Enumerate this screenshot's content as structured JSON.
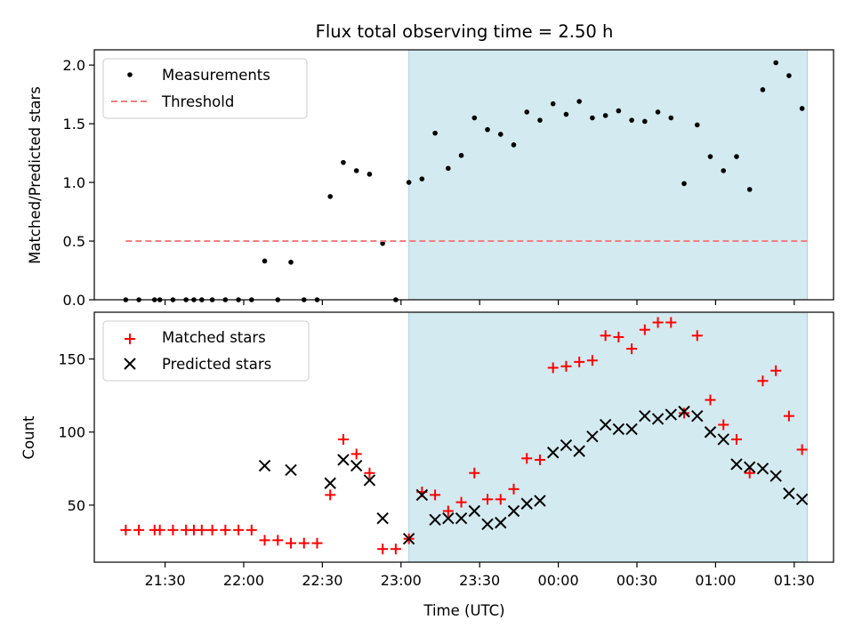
{
  "chart_data": {
    "type": "scatter",
    "title": "Flux total observing time = 2.50 h",
    "xlabel": "Time (UTC)",
    "x_range": [
      "21:03",
      "01:45"
    ],
    "x_tick_labels": [
      "21:30",
      "22:00",
      "22:30",
      "23:00",
      "23:30",
      "00:00",
      "00:30",
      "01:00",
      "01:30"
    ],
    "highlight_span": {
      "start": "23:03",
      "end": "01:35",
      "color": "#d3eaf0"
    },
    "panels": [
      {
        "ylabel": "Matched/Predicted stars",
        "ylim": [
          0,
          2.13
        ],
        "y_tick_labels": [
          "0.0",
          "0.5",
          "1.0",
          "1.5",
          "2.0"
        ],
        "legend_position": "top-left",
        "series": [
          {
            "name": "Measurements",
            "marker": "dot",
            "color": "#000000",
            "points": [
              [
                "21:15",
                0
              ],
              [
                "21:20",
                0
              ],
              [
                "21:26",
                0
              ],
              [
                "21:28",
                0
              ],
              [
                "21:33",
                0
              ],
              [
                "21:38",
                0
              ],
              [
                "21:41",
                0
              ],
              [
                "21:44",
                0
              ],
              [
                "21:48",
                0
              ],
              [
                "21:53",
                0
              ],
              [
                "21:58",
                0
              ],
              [
                "22:03",
                0
              ],
              [
                "22:08",
                0.33
              ],
              [
                "22:13",
                0
              ],
              [
                "22:18",
                0.32
              ],
              [
                "22:23",
                0
              ],
              [
                "22:28",
                0
              ],
              [
                "22:33",
                0.88
              ],
              [
                "22:38",
                1.17
              ],
              [
                "22:43",
                1.1
              ],
              [
                "22:48",
                1.07
              ],
              [
                "22:53",
                0.48
              ],
              [
                "22:58",
                0
              ],
              [
                "23:03",
                1.0
              ],
              [
                "23:08",
                1.03
              ],
              [
                "23:13",
                1.42
              ],
              [
                "23:18",
                1.12
              ],
              [
                "23:23",
                1.23
              ],
              [
                "23:28",
                1.55
              ],
              [
                "23:33",
                1.45
              ],
              [
                "23:38",
                1.41
              ],
              [
                "23:43",
                1.32
              ],
              [
                "23:48",
                1.6
              ],
              [
                "23:53",
                1.53
              ],
              [
                "23:58",
                1.67
              ],
              [
                "00:03",
                1.58
              ],
              [
                "00:08",
                1.69
              ],
              [
                "00:13",
                1.55
              ],
              [
                "00:18",
                1.57
              ],
              [
                "00:23",
                1.61
              ],
              [
                "00:28",
                1.53
              ],
              [
                "00:33",
                1.52
              ],
              [
                "00:38",
                1.6
              ],
              [
                "00:43",
                1.55
              ],
              [
                "00:48",
                0.99
              ],
              [
                "00:53",
                1.49
              ],
              [
                "00:58",
                1.22
              ],
              [
                "01:03",
                1.1
              ],
              [
                "01:08",
                1.22
              ],
              [
                "01:13",
                0.94
              ],
              [
                "01:18",
                1.79
              ],
              [
                "01:23",
                2.02
              ],
              [
                "01:28",
                1.91
              ],
              [
                "01:33",
                1.63
              ]
            ]
          },
          {
            "name": "Threshold",
            "marker": "dashed-line",
            "color": "#f08080",
            "y": 0.5,
            "x": [
              "21:15",
              "01:35"
            ]
          }
        ]
      },
      {
        "ylabel": "Count",
        "ylim": [
          11,
          182
        ],
        "y_tick_labels": [
          "50",
          "100",
          "150"
        ],
        "legend_position": "top-left",
        "series": [
          {
            "name": "Matched stars",
            "marker": "plus",
            "color": "#ff0000",
            "points": [
              [
                "21:15",
                33
              ],
              [
                "21:20",
                33
              ],
              [
                "21:26",
                33
              ],
              [
                "21:28",
                33
              ],
              [
                "21:33",
                33
              ],
              [
                "21:38",
                33
              ],
              [
                "21:41",
                33
              ],
              [
                "21:44",
                33
              ],
              [
                "21:48",
                33
              ],
              [
                "21:53",
                33
              ],
              [
                "21:58",
                33
              ],
              [
                "22:03",
                33
              ],
              [
                "22:08",
                26
              ],
              [
                "22:13",
                26
              ],
              [
                "22:18",
                24
              ],
              [
                "22:23",
                24
              ],
              [
                "22:28",
                24
              ],
              [
                "22:33",
                57
              ],
              [
                "22:38",
                95
              ],
              [
                "22:43",
                85
              ],
              [
                "22:48",
                72
              ],
              [
                "22:53",
                20
              ],
              [
                "22:58",
                20
              ],
              [
                "23:03",
                27
              ],
              [
                "23:08",
                59
              ],
              [
                "23:13",
                57
              ],
              [
                "23:18",
                46
              ],
              [
                "23:23",
                52
              ],
              [
                "23:28",
                72
              ],
              [
                "23:33",
                54
              ],
              [
                "23:38",
                54
              ],
              [
                "23:43",
                61
              ],
              [
                "23:48",
                82
              ],
              [
                "23:53",
                81
              ],
              [
                "23:58",
                144
              ],
              [
                "00:03",
                145
              ],
              [
                "00:08",
                148
              ],
              [
                "00:13",
                149
              ],
              [
                "00:18",
                166
              ],
              [
                "00:23",
                165
              ],
              [
                "00:28",
                157
              ],
              [
                "00:33",
                170
              ],
              [
                "00:38",
                175
              ],
              [
                "00:43",
                175
              ],
              [
                "00:48",
                113
              ],
              [
                "00:53",
                166
              ],
              [
                "00:58",
                122
              ],
              [
                "01:03",
                105
              ],
              [
                "01:08",
                95
              ],
              [
                "01:13",
                72
              ],
              [
                "01:18",
                135
              ],
              [
                "01:23",
                142
              ],
              [
                "01:28",
                111
              ],
              [
                "01:33",
                88
              ]
            ]
          },
          {
            "name": "Predicted stars",
            "marker": "x",
            "color": "#000000",
            "points": [
              [
                "22:08",
                77
              ],
              [
                "22:18",
                74
              ],
              [
                "22:33",
                65
              ],
              [
                "22:38",
                81
              ],
              [
                "22:43",
                77
              ],
              [
                "22:48",
                67
              ],
              [
                "22:53",
                41
              ],
              [
                "23:03",
                27
              ],
              [
                "23:08",
                57
              ],
              [
                "23:13",
                40
              ],
              [
                "23:18",
                41
              ],
              [
                "23:23",
                41
              ],
              [
                "23:28",
                46
              ],
              [
                "23:33",
                37
              ],
              [
                "23:38",
                38
              ],
              [
                "23:43",
                46
              ],
              [
                "23:48",
                51
              ],
              [
                "23:53",
                53
              ],
              [
                "23:58",
                86
              ],
              [
                "00:03",
                91
              ],
              [
                "00:08",
                87
              ],
              [
                "00:13",
                97
              ],
              [
                "00:18",
                105
              ],
              [
                "00:23",
                102
              ],
              [
                "00:28",
                102
              ],
              [
                "00:33",
                111
              ],
              [
                "00:38",
                109
              ],
              [
                "00:43",
                112
              ],
              [
                "00:48",
                114
              ],
              [
                "00:53",
                111
              ],
              [
                "00:58",
                100
              ],
              [
                "01:03",
                95
              ],
              [
                "01:08",
                78
              ],
              [
                "01:13",
                76
              ],
              [
                "01:18",
                75
              ],
              [
                "01:23",
                70
              ],
              [
                "01:28",
                58
              ],
              [
                "01:33",
                54
              ]
            ]
          }
        ]
      }
    ]
  }
}
